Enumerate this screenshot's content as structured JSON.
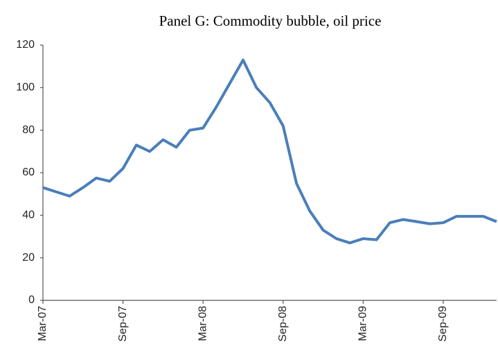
{
  "chart_data": {
    "type": "line",
    "title": "Panel G: Commodity bubble, oil price",
    "categories": [
      "Mar-07",
      null,
      null,
      null,
      null,
      null,
      "Sep-07",
      null,
      null,
      null,
      null,
      null,
      "Mar-08",
      null,
      null,
      null,
      null,
      null,
      "Sep-08",
      null,
      null,
      null,
      null,
      null,
      "Mar-09",
      null,
      null,
      null,
      null,
      null,
      "Sep-09",
      null,
      null,
      null,
      null
    ],
    "series": [
      {
        "color": "#4a7ebb",
        "values": [
          53,
          51,
          49,
          53,
          57.5,
          56,
          62,
          73,
          70,
          75.5,
          72,
          80,
          81,
          91,
          102,
          113,
          100,
          93,
          82,
          55,
          42,
          33,
          29,
          27,
          29,
          28.5,
          36.5,
          38,
          37,
          36,
          36.5,
          39.5,
          39.5,
          39.5,
          37
        ]
      }
    ],
    "ylim": [
      0,
      120
    ],
    "yticks": [
      0,
      20,
      40,
      60,
      80,
      100,
      120
    ],
    "grid": false
  }
}
